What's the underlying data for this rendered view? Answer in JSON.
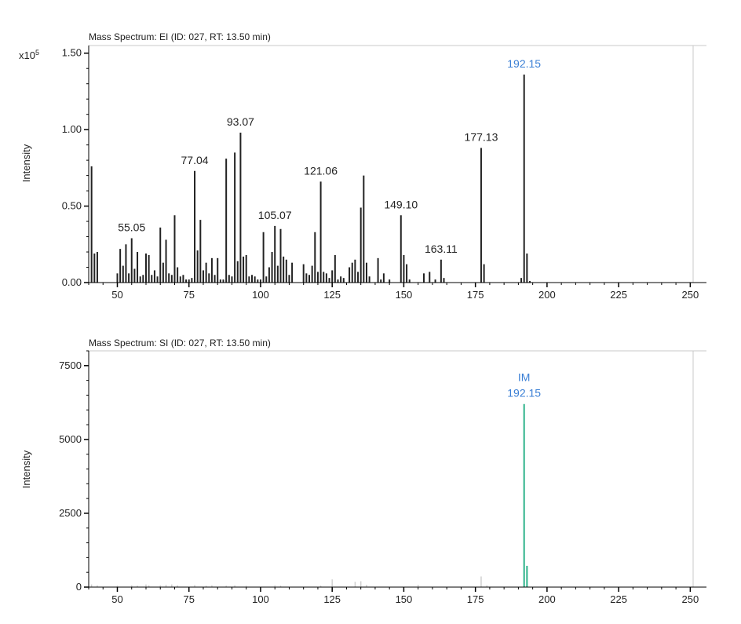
{
  "chart_data": [
    {
      "type": "bar",
      "title": "Mass Spectrum: EI (ID: 027, RT: 13.50 min)",
      "ylabel": "Intensity",
      "scale_label": "x10",
      "scale_exp": "5",
      "xlim": [
        40,
        251
      ],
      "ylim": [
        0,
        1.55
      ],
      "xticks": [
        50,
        75,
        100,
        125,
        150,
        175,
        200,
        225,
        250
      ],
      "yticks": [
        0.0,
        0.5,
        1.0,
        1.5
      ],
      "ytick_labels": [
        "0.00",
        "0.50",
        "1.00",
        "1.50"
      ],
      "bar_color": "#222222",
      "highlight_color": "#3a7fd5",
      "x": [
        41,
        42,
        43,
        50,
        51,
        52,
        53,
        54,
        55,
        56,
        57,
        58,
        59,
        60,
        61,
        62,
        63,
        64,
        65,
        66,
        67,
        68,
        69,
        70,
        71,
        72,
        73,
        74,
        75,
        76,
        77,
        78,
        79,
        80,
        81,
        82,
        83,
        84,
        85,
        86,
        87,
        88,
        89,
        90,
        91,
        92,
        93,
        94,
        95,
        96,
        97,
        98,
        99,
        100,
        101,
        102,
        103,
        104,
        105,
        106,
        107,
        108,
        109,
        110,
        111,
        115,
        116,
        117,
        118,
        119,
        120,
        121,
        122,
        123,
        124,
        125,
        126,
        127,
        128,
        129,
        131,
        132,
        133,
        134,
        135,
        136,
        137,
        138,
        141,
        142,
        143,
        145,
        149,
        150,
        151,
        152,
        157,
        159,
        161,
        163,
        164,
        177,
        178,
        191,
        192,
        193,
        194
      ],
      "values": [
        0.76,
        0.19,
        0.2,
        0.06,
        0.22,
        0.11,
        0.25,
        0.06,
        0.29,
        0.09,
        0.2,
        0.04,
        0.05,
        0.19,
        0.18,
        0.05,
        0.08,
        0.04,
        0.36,
        0.13,
        0.28,
        0.06,
        0.05,
        0.44,
        0.1,
        0.04,
        0.05,
        0.02,
        0.02,
        0.03,
        0.73,
        0.21,
        0.41,
        0.08,
        0.13,
        0.06,
        0.16,
        0.05,
        0.16,
        0.02,
        0.02,
        0.81,
        0.05,
        0.04,
        0.85,
        0.14,
        0.98,
        0.17,
        0.18,
        0.04,
        0.05,
        0.04,
        0.02,
        0.02,
        0.33,
        0.04,
        0.1,
        0.2,
        0.37,
        0.11,
        0.35,
        0.17,
        0.15,
        0.05,
        0.13,
        0.12,
        0.06,
        0.05,
        0.11,
        0.33,
        0.07,
        0.66,
        0.07,
        0.06,
        0.03,
        0.08,
        0.18,
        0.02,
        0.04,
        0.03,
        0.1,
        0.13,
        0.15,
        0.07,
        0.49,
        0.7,
        0.13,
        0.04,
        0.16,
        0.02,
        0.06,
        0.02,
        0.44,
        0.18,
        0.12,
        0.02,
        0.06,
        0.07,
        0.02,
        0.15,
        0.03,
        0.88,
        0.12,
        0.03,
        1.36,
        0.19,
        0.01
      ],
      "annotations": [
        {
          "x": 55,
          "y": 0.29,
          "text": "55.05",
          "highlight": false
        },
        {
          "x": 77,
          "y": 0.73,
          "text": "77.04",
          "highlight": false
        },
        {
          "x": 93,
          "y": 0.98,
          "text": "93.07",
          "highlight": false
        },
        {
          "x": 105,
          "y": 0.37,
          "text": "105.07",
          "highlight": false
        },
        {
          "x": 121,
          "y": 0.66,
          "text": "121.06",
          "highlight": false
        },
        {
          "x": 149,
          "y": 0.44,
          "text": "149.10",
          "highlight": false
        },
        {
          "x": 163,
          "y": 0.15,
          "text": "163.11",
          "highlight": false
        },
        {
          "x": 177,
          "y": 0.88,
          "text": "177.13",
          "highlight": false
        },
        {
          "x": 192,
          "y": 1.36,
          "text": "192.15",
          "highlight": true
        }
      ]
    },
    {
      "type": "bar",
      "title": "Mass Spectrum: SI (ID: 027, RT: 13.50 min)",
      "ylabel": "Intensity",
      "xlim": [
        40,
        251
      ],
      "ylim": [
        0,
        8000
      ],
      "xticks": [
        50,
        75,
        100,
        125,
        150,
        175,
        200,
        225,
        250
      ],
      "yticks": [
        0,
        2500,
        5000,
        7500
      ],
      "ytick_labels": [
        "0",
        "2500",
        "5000",
        "7500"
      ],
      "bar_color": "#cfcfcf",
      "highlight_color": "#2db38a",
      "x": [
        41,
        43,
        50,
        55,
        57,
        60,
        61,
        65,
        67,
        69,
        71,
        77,
        81,
        83,
        88,
        91,
        95,
        105,
        107,
        121,
        125,
        133,
        135,
        137,
        155,
        177,
        179,
        192,
        193
      ],
      "values": [
        90,
        60,
        50,
        60,
        50,
        90,
        60,
        60,
        80,
        90,
        60,
        70,
        50,
        60,
        50,
        60,
        50,
        60,
        50,
        50,
        260,
        180,
        200,
        80,
        80,
        360,
        60,
        6200,
        720
      ],
      "highlight_x": [
        192,
        193
      ],
      "annotations": [
        {
          "x": 192,
          "y": 6200,
          "text": "192.15",
          "label_above": "IM",
          "highlight": true
        }
      ]
    }
  ]
}
